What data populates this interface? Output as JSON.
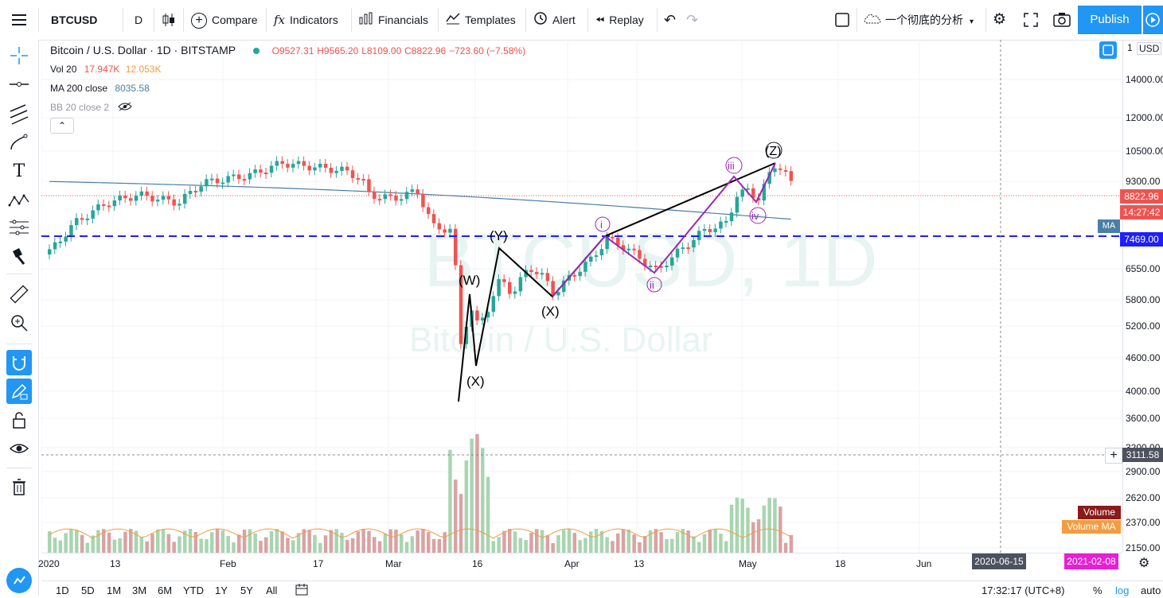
{
  "toolbar": {
    "symbol": "BTCUSD",
    "interval": "D",
    "compare": "Compare",
    "indicators": "Indicators",
    "financials": "Financials",
    "templates": "Templates",
    "alert": "Alert",
    "replay": "Replay",
    "layout_name": "一个彻底的分析",
    "publish": "Publish"
  },
  "legend": {
    "title": "Bitcoin / U.S. Dollar · 1D · BITSTAMP",
    "o": "O9527.31",
    "h": "H9565.20",
    "l": "L8109.00",
    "c": "C8822.96",
    "change": "−723.60 (−7.58%)",
    "vol_label": "Vol 20",
    "vol_v1": "17.947K",
    "vol_v2": "12.053K",
    "ma_label": "MA 200 close",
    "ma_value": "8035.58",
    "bb_label": "BB 20 close 2"
  },
  "watermark": {
    "symbol": "BTCUSD, 1D",
    "name": "Bitcoin / U.S. Dollar"
  },
  "price_scale": {
    "currency": "USD",
    "ticks": [
      "14000.00",
      "12000.00",
      "10500.00",
      "9300.00",
      "6550.00",
      "5800.00",
      "5200.00",
      "4600.00",
      "4000.00",
      "3600.00",
      "3200.00",
      "2900.00",
      "2620.00",
      "2370.00",
      "2150.00"
    ],
    "last_price": "8822.96",
    "countdown": "14:27:42",
    "ma_tag": "MA",
    "hline_price": "7469.00",
    "crosshair_price": "3111.58",
    "volume_tag": "Volume",
    "volume_ma_tag": "Volume MA",
    "corner": "1"
  },
  "time_scale": {
    "ticks": [
      "2020",
      "13",
      "Feb",
      "17",
      "Mar",
      "16",
      "Apr",
      "13",
      "May",
      "18",
      "Jun"
    ],
    "cursor_date": "2020-06-15",
    "end_date": "2021-02-08"
  },
  "wave_labels": {
    "w": "(W)",
    "x1": "(X)",
    "y": "(Y)",
    "x2": "(X)",
    "z": "(Z)",
    "i": "i",
    "ii": "ii",
    "iii": "iii",
    "iv": "iv"
  },
  "bottom": {
    "ranges": [
      "1D",
      "5D",
      "1M",
      "3M",
      "6M",
      "YTD",
      "1Y",
      "5Y",
      "All"
    ],
    "clock": "17:32:17 (UTC+8)",
    "pct": "%",
    "log": "log",
    "auto": "auto"
  },
  "colors": {
    "accent": "#2196f3",
    "up": "#26a69a",
    "down": "#ef5350",
    "wave_black": "#000000",
    "wave_purple": "#9c27b0",
    "hline": "#1e1eff",
    "ma": "#4a7fa6"
  }
}
